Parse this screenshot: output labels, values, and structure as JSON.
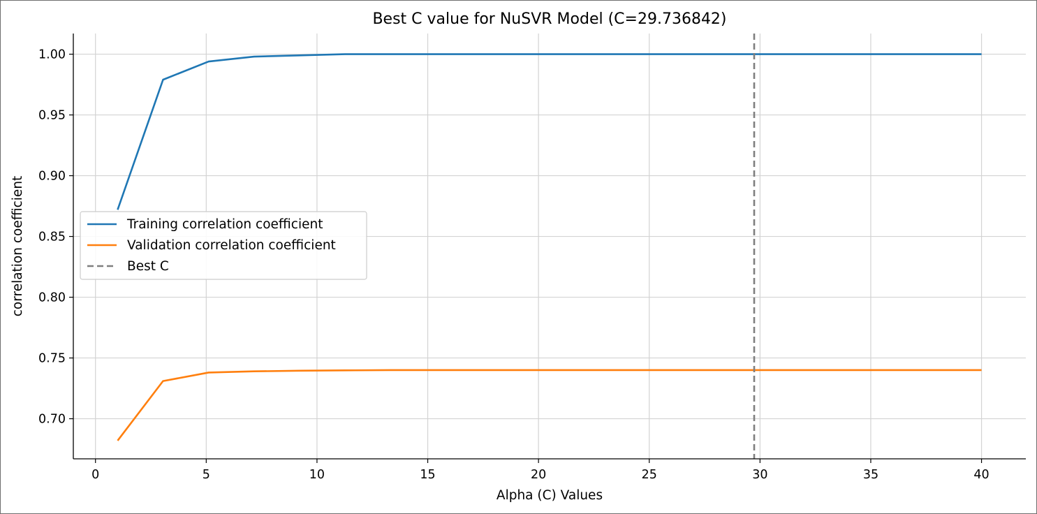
{
  "chart_data": {
    "type": "line",
    "title": "Best C value for NuSVR Model (C=29.736842)",
    "xlabel": "Alpha (C) Values",
    "ylabel": "correlation coefficient",
    "xlim": [
      -1,
      42
    ],
    "ylim": [
      0.667,
      1.017
    ],
    "x_ticks": [
      0,
      5,
      10,
      15,
      20,
      25,
      30,
      35,
      40
    ],
    "y_ticks": [
      0.7,
      0.75,
      0.8,
      0.85,
      0.9,
      0.95,
      1.0
    ],
    "x_tick_labels": [
      "0",
      "5",
      "10",
      "15",
      "20",
      "25",
      "30",
      "35",
      "40"
    ],
    "y_tick_labels": [
      "0.70",
      "0.75",
      "0.80",
      "0.85",
      "0.90",
      "0.95",
      "1.00"
    ],
    "grid": true,
    "legend_position": "center-left",
    "best_c": 29.736842,
    "best_c_label": "Best C",
    "best_c_color": "#7f7f7f",
    "series": [
      {
        "name": "Training correlation coefficient",
        "color": "#1f77b4",
        "x": [
          1,
          3.05,
          5.11,
          7.16,
          9.21,
          11.26,
          13.32,
          15.37,
          17.42,
          19.47,
          21.53,
          23.58,
          25.63,
          27.68,
          29.74,
          31.79,
          33.84,
          35.89,
          37.95,
          40
        ],
        "y": [
          0.872,
          0.979,
          0.994,
          0.998,
          0.999,
          1.0,
          1.0,
          1.0,
          1.0,
          1.0,
          1.0,
          1.0,
          1.0,
          1.0,
          1.0,
          1.0,
          1.0,
          1.0,
          1.0,
          1.0
        ]
      },
      {
        "name": "Validation correlation coefficient",
        "color": "#ff7f0e",
        "x": [
          1,
          3.05,
          5.11,
          7.16,
          9.21,
          11.26,
          13.32,
          15.37,
          17.42,
          19.47,
          21.53,
          23.58,
          25.63,
          27.68,
          29.74,
          31.79,
          33.84,
          35.89,
          37.95,
          40
        ],
        "y": [
          0.682,
          0.731,
          0.738,
          0.739,
          0.7395,
          0.7398,
          0.74,
          0.74,
          0.74,
          0.74,
          0.74,
          0.74,
          0.74,
          0.74,
          0.74,
          0.74,
          0.74,
          0.74,
          0.74,
          0.74
        ]
      }
    ]
  }
}
